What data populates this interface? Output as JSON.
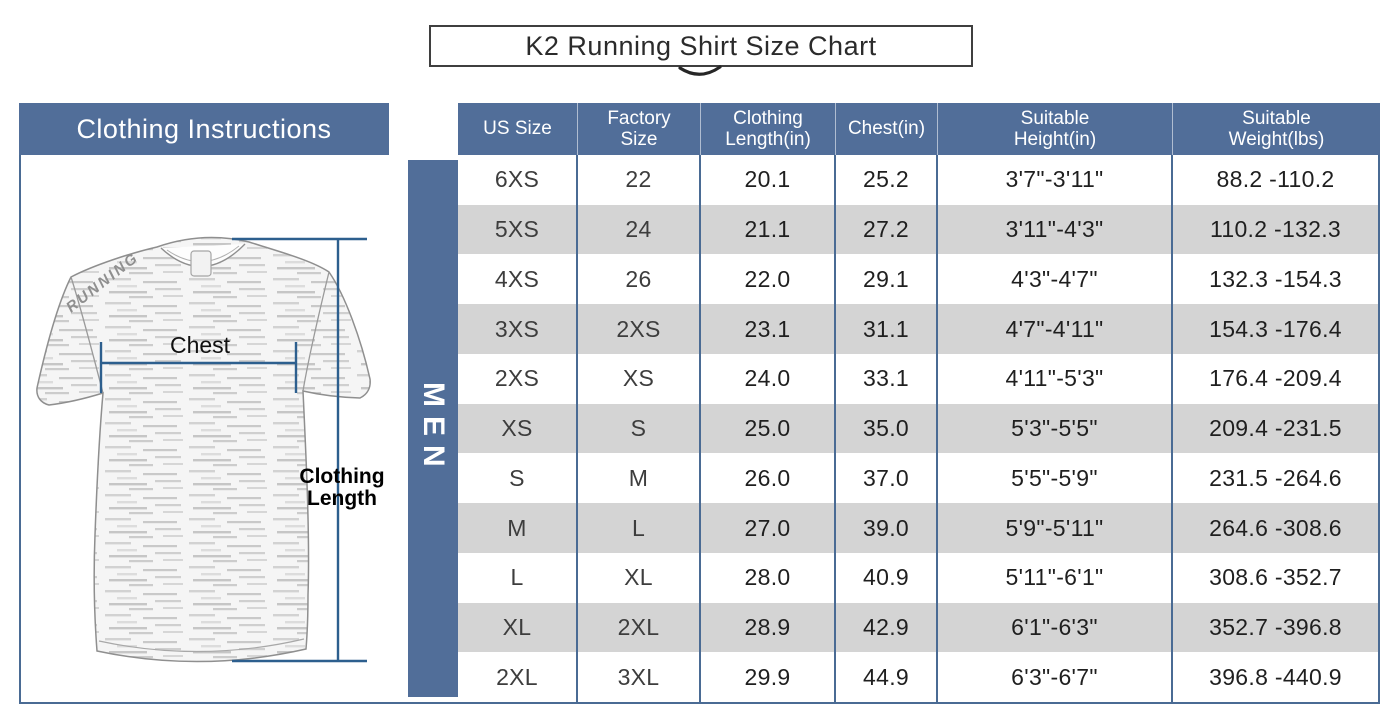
{
  "title": "K2 Running Shirt Size Chart",
  "left_panel": {
    "header": "Clothing Instructions",
    "gender_band": "MEN",
    "shirt": {
      "logo": "RUNNING",
      "chest_label": "Chest",
      "length_label": {
        "line1": "Clothing",
        "line2": "Length"
      }
    }
  },
  "chart_data": {
    "type": "table",
    "title": "K2 Running Shirt Size Chart",
    "columns": [
      "US Size",
      "Factory\nSize",
      "Clothing\nLength(in)",
      "Chest(in)",
      "Suitable\nHeight(in)",
      "Suitable\nWeight(lbs)"
    ],
    "rows": [
      [
        "6XS",
        "22",
        "20.1",
        "25.2",
        "3'7\"-3'11\"",
        "88.2 -110.2"
      ],
      [
        "5XS",
        "24",
        "21.1",
        "27.2",
        "3'11\"-4'3\"",
        "110.2 -132.3"
      ],
      [
        "4XS",
        "26",
        "22.0",
        "29.1",
        "4'3\"-4'7\"",
        "132.3 -154.3"
      ],
      [
        "3XS",
        "2XS",
        "23.1",
        "31.1",
        "4'7\"-4'11\"",
        "154.3 -176.4"
      ],
      [
        "2XS",
        "XS",
        "24.0",
        "33.1",
        "4'11\"-5'3\"",
        "176.4 -209.4"
      ],
      [
        "XS",
        "S",
        "25.0",
        "35.0",
        "5'3\"-5'5\"",
        "209.4 -231.5"
      ],
      [
        "S",
        "M",
        "26.0",
        "37.0",
        "5'5\"-5'9\"",
        "231.5 -264.6"
      ],
      [
        "M",
        "L",
        "27.0",
        "39.0",
        "5'9\"-5'11\"",
        "264.6 -308.6"
      ],
      [
        "L",
        "XL",
        "28.0",
        "40.9",
        "5'11\"-6'1\"",
        "308.6 -352.7"
      ],
      [
        "XL",
        "2XL",
        "28.9",
        "42.9",
        "6'1\"-6'3\"",
        "352.7 -396.8"
      ],
      [
        "2XL",
        "3XL",
        "29.9",
        "44.9",
        "6'3\"-6'7\"",
        "396.8 -440.9"
      ]
    ]
  },
  "colors": {
    "accent_blue": "#516E99",
    "border_blue": "#4A6B94",
    "row_alt_gray": "#D4D4D4",
    "measure_line_blue": "#2D5F8E"
  }
}
